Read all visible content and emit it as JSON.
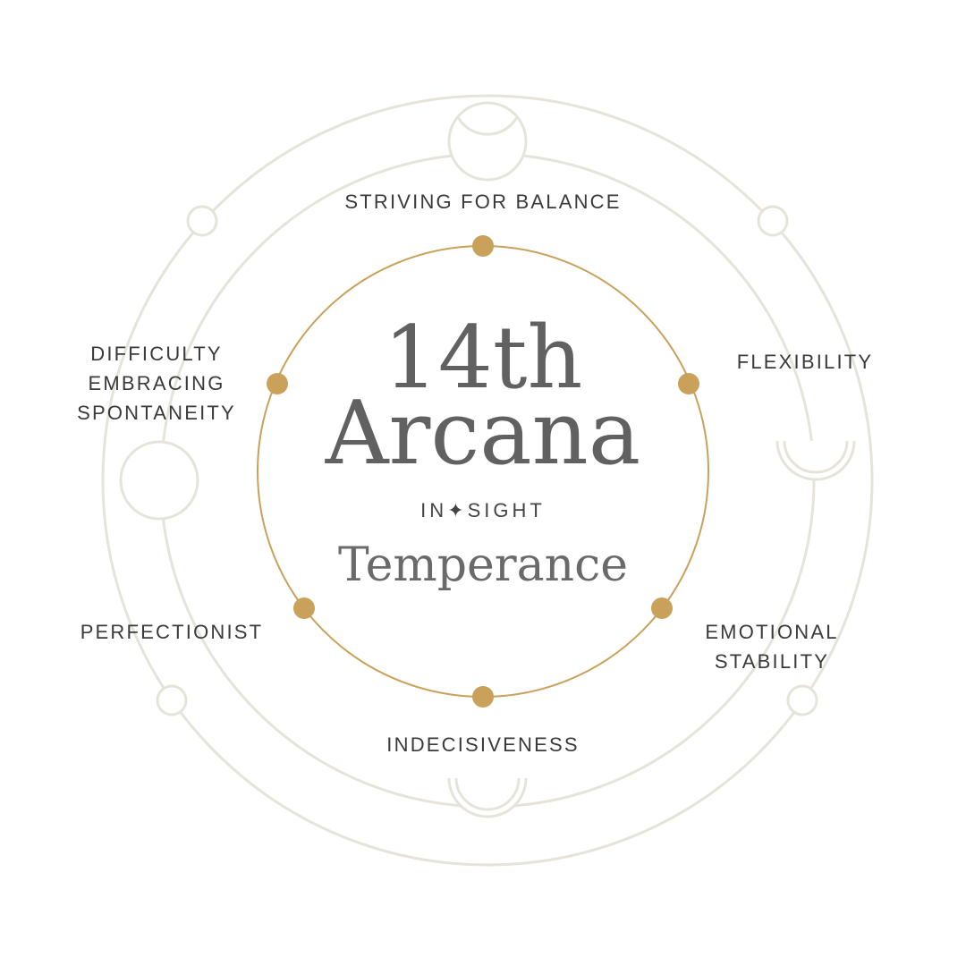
{
  "title": {
    "line1": "14th",
    "line2": "Arcana",
    "brand": "IN✦SIGHT",
    "card_name": "Temperance"
  },
  "traits": {
    "top": "STRIVING FOR BALANCE",
    "top_right": "FLEXIBILITY",
    "bottom_right_line1": "EMOTIONAL",
    "bottom_right_line2": "STABILITY",
    "bottom": "INDECISIVENESS",
    "bottom_left": "PERFECTIONIST",
    "top_left_line1": "DIFFICULTY",
    "top_left_line2": "EMBRACING",
    "top_left_line3": "SPONTANEITY"
  },
  "colors": {
    "ring": "#e6e3da",
    "accent": "#c9a15a",
    "text": "#3a3a3a",
    "title": "#616161"
  }
}
